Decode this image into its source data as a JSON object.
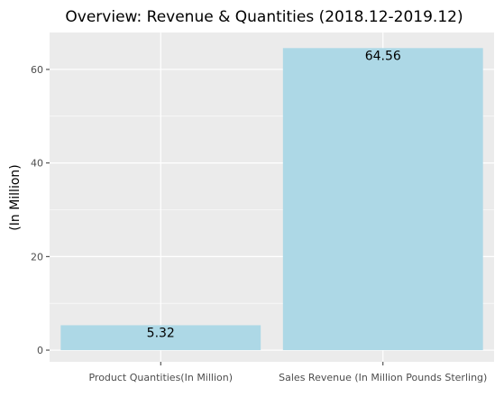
{
  "chart_data": {
    "type": "bar",
    "title": "Overview: Revenue & Quantities (2018.12-2019.12)",
    "xlabel": "",
    "ylabel": "(In Million)",
    "categories": [
      "Product Quantities(In Million)",
      "Sales Revenue (In Million Pounds Sterling)"
    ],
    "values": [
      5.32,
      64.56
    ],
    "data_labels": [
      "5.32",
      "64.56"
    ],
    "ylim": [
      -2.5,
      67.9
    ],
    "yticks": [
      0,
      20,
      40,
      60
    ],
    "ytick_labels": [
      "0",
      "20",
      "40",
      "60"
    ],
    "grid": true,
    "legend": "none",
    "colors": {
      "bar": "#add8e6",
      "panel": "#ebebeb",
      "grid": "#ffffff",
      "text": "#000000",
      "tick_text": "#4d4d4d"
    }
  }
}
